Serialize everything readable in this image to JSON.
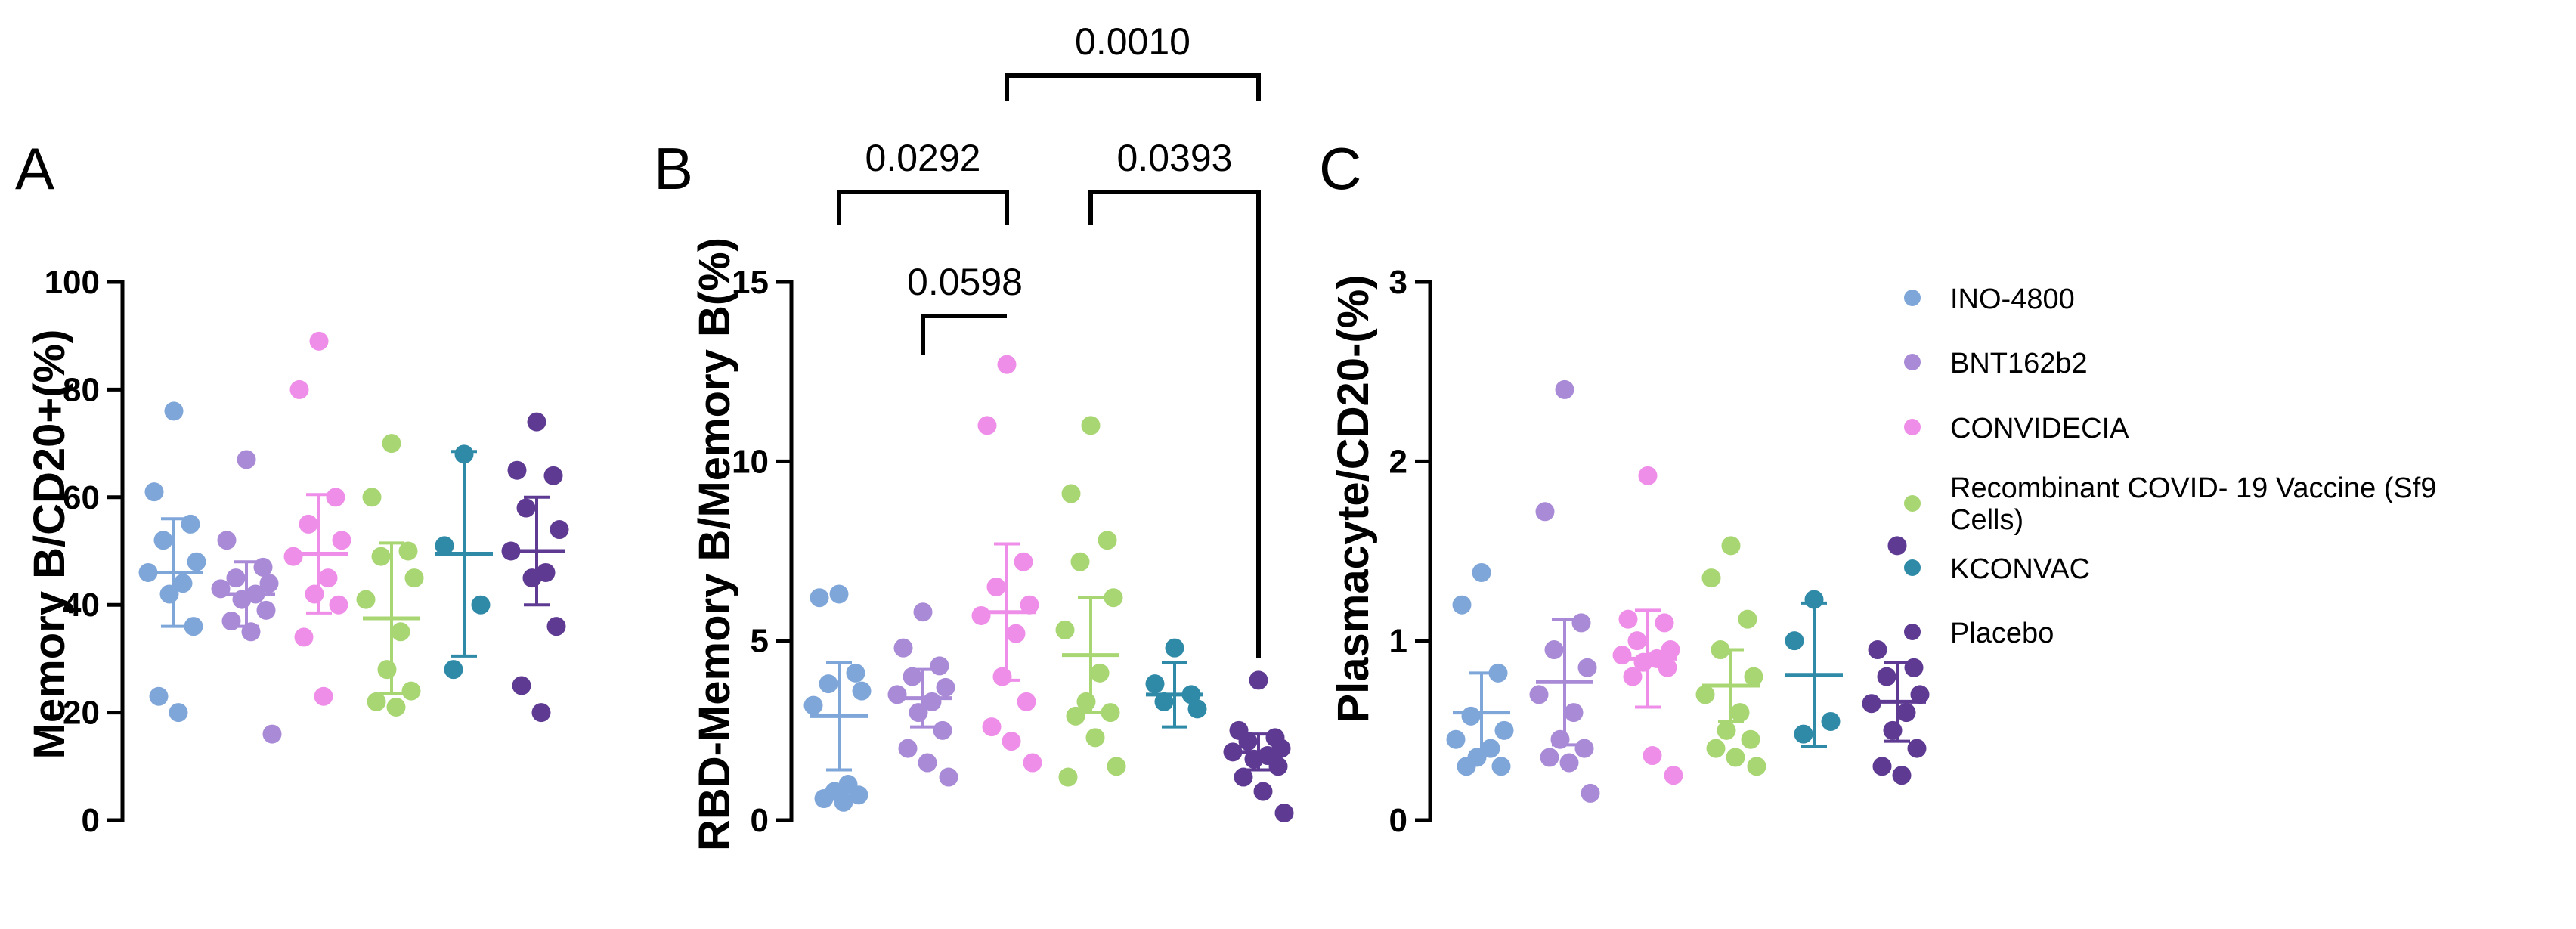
{
  "legend": [
    {
      "label": "INO-4800",
      "color": "#7fa6d9"
    },
    {
      "label": "BNT162b2",
      "color": "#a98ad6"
    },
    {
      "label": "CONVIDECIA",
      "color": "#ee8ee8"
    },
    {
      "label": "Recombinant COVID- 19 Vaccine (Sf9",
      "label2": "Cells)",
      "color": "#a8d672"
    },
    {
      "label": "KCONVAC",
      "color": "#2f8aa8"
    },
    {
      "label": "Placebo",
      "color": "#5e3a92"
    }
  ],
  "chart_data": [
    {
      "type": "scatter",
      "panel": "A",
      "ylabel": "Memory B/CD20+(%)",
      "ylim": [
        0,
        100
      ],
      "yticks": [
        0,
        20,
        40,
        60,
        80,
        100
      ],
      "groups": [
        {
          "name": "INO-4800",
          "color": "#7fa6d9",
          "values": [
            76,
            61,
            55,
            52,
            48,
            46,
            44,
            42,
            36,
            23,
            20
          ],
          "mean": 46,
          "sd": 10
        },
        {
          "name": "BNT162b2",
          "color": "#a98ad6",
          "values": [
            67,
            52,
            47,
            45,
            44,
            43,
            42,
            41,
            39,
            37,
            35,
            16
          ],
          "mean": 42,
          "sd": 6
        },
        {
          "name": "CONVIDECIA",
          "color": "#ee8ee8",
          "values": [
            89,
            80,
            60,
            55,
            52,
            49,
            45,
            42,
            40,
            34,
            23
          ],
          "mean": 49.5,
          "sd": 11
        },
        {
          "name": "Recombinant COVID- 19 Vaccine (Sf9 Cells)",
          "color": "#a8d672",
          "values": [
            70,
            60,
            50,
            49,
            45,
            41,
            35,
            28,
            24,
            22,
            21
          ],
          "mean": 37.5,
          "sd": 14
        },
        {
          "name": "KCONVAC",
          "color": "#2f8aa8",
          "values": [
            68,
            51,
            40,
            28
          ],
          "mean": 49.5,
          "sd": 19
        },
        {
          "name": "Placebo",
          "color": "#5e3a92",
          "values": [
            74,
            65,
            64,
            58,
            54,
            50,
            46,
            45,
            36,
            25,
            20
          ],
          "mean": 50,
          "sd": 10
        }
      ]
    },
    {
      "type": "scatter",
      "panel": "B",
      "ylabel": "RBD-Memory B/Memory B(%)",
      "ylim": [
        0,
        15
      ],
      "yticks": [
        0,
        5,
        10,
        15
      ],
      "groups": [
        {
          "name": "INO-4800",
          "color": "#7fa6d9",
          "values": [
            6.3,
            6.2,
            4.1,
            3.8,
            3.6,
            3.2,
            1.0,
            0.8,
            0.7,
            0.6,
            0.5
          ],
          "mean": 2.9,
          "sd": 1.5
        },
        {
          "name": "BNT162b2",
          "color": "#a98ad6",
          "values": [
            5.8,
            4.8,
            4.3,
            4.0,
            3.7,
            3.5,
            3.3,
            3.0,
            2.5,
            2.0,
            1.6,
            1.2
          ],
          "mean": 3.4,
          "sd": 0.8
        },
        {
          "name": "CONVIDECIA",
          "color": "#ee8ee8",
          "values": [
            12.7,
            11.0,
            7.2,
            6.5,
            6.0,
            5.7,
            5.2,
            4.0,
            3.3,
            2.6,
            2.2,
            1.6
          ],
          "mean": 5.8,
          "sd": 1.9
        },
        {
          "name": "Recombinant COVID- 19 Vaccine (Sf9 Cells)",
          "color": "#a8d672",
          "values": [
            11.0,
            9.1,
            7.8,
            7.2,
            6.2,
            5.3,
            4.1,
            3.3,
            3.0,
            2.9,
            2.3,
            1.5,
            1.2
          ],
          "mean": 4.6,
          "sd": 1.6
        },
        {
          "name": "KCONVAC",
          "color": "#2f8aa8",
          "values": [
            4.8,
            3.8,
            3.5,
            3.3,
            3.1
          ],
          "mean": 3.5,
          "sd": 0.9
        },
        {
          "name": "Placebo",
          "color": "#5e3a92",
          "values": [
            3.9,
            2.5,
            2.3,
            2.2,
            2.0,
            1.9,
            1.8,
            1.7,
            1.5,
            1.2,
            0.8,
            0.2
          ],
          "mean": 1.9,
          "sd": 0.5
        }
      ],
      "comparisons": [
        {
          "from": "INO-4800",
          "to": "CONVIDECIA",
          "p": "0.0292"
        },
        {
          "from": "BNT162b2",
          "to": "CONVIDECIA",
          "p": "0.0598"
        },
        {
          "from": "CONVIDECIA",
          "to": "Placebo",
          "p": "0.0010"
        },
        {
          "from": "Recombinant COVID- 19 Vaccine (Sf9 Cells)",
          "to": "Placebo",
          "p": "0.0393"
        }
      ]
    },
    {
      "type": "scatter",
      "panel": "C",
      "ylabel": "Plasmacyte/CD20-(%)",
      "ylim": [
        0,
        3
      ],
      "yticks": [
        0,
        1,
        2,
        3
      ],
      "groups": [
        {
          "name": "INO-4800",
          "color": "#7fa6d9",
          "values": [
            1.38,
            1.2,
            0.82,
            0.58,
            0.5,
            0.45,
            0.4,
            0.35,
            0.3,
            0.3
          ],
          "mean": 0.6,
          "sd": 0.22
        },
        {
          "name": "BNT162b2",
          "color": "#a98ad6",
          "values": [
            2.4,
            1.72,
            1.1,
            0.95,
            0.85,
            0.7,
            0.6,
            0.45,
            0.4,
            0.35,
            0.32,
            0.15
          ],
          "mean": 0.77,
          "sd": 0.35
        },
        {
          "name": "CONVIDECIA",
          "color": "#ee8ee8",
          "values": [
            1.92,
            1.12,
            1.1,
            1.0,
            0.95,
            0.92,
            0.9,
            0.88,
            0.85,
            0.8,
            0.36,
            0.25
          ],
          "mean": 0.9,
          "sd": 0.27
        },
        {
          "name": "Recombinant COVID- 19 Vaccine (Sf9 Cells)",
          "color": "#a8d672",
          "values": [
            1.53,
            1.35,
            1.12,
            0.95,
            0.8,
            0.7,
            0.6,
            0.5,
            0.45,
            0.4,
            0.35,
            0.3
          ],
          "mean": 0.75,
          "sd": 0.2
        },
        {
          "name": "KCONVAC",
          "color": "#2f8aa8",
          "values": [
            1.23,
            1.0,
            0.55,
            0.48
          ],
          "mean": 0.81,
          "sd": 0.4
        },
        {
          "name": "Placebo",
          "color": "#5e3a92",
          "values": [
            1.53,
            0.95,
            0.85,
            0.8,
            0.7,
            0.65,
            0.6,
            0.5,
            0.4,
            0.3,
            0.25
          ],
          "mean": 0.66,
          "sd": 0.22
        }
      ]
    }
  ]
}
